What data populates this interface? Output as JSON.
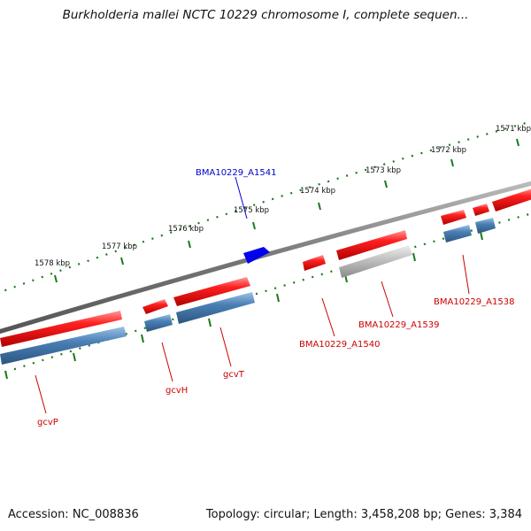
{
  "title": "Burkholderia mallei NCTC 10229 chromosome I, complete sequen...",
  "footer": {
    "accession": "Accession: NC_008836",
    "stats": "Topology: circular; Length: 3,458,208 bp; Genes: 3,384"
  },
  "ruler_labels": [
    "1571 kbp",
    "1572 kbp",
    "1573 kbp",
    "1574 kbp",
    "1575 kbp",
    "1576 kbp",
    "1577 kbp",
    "1578 kbp"
  ],
  "gene_labels": {
    "a1541": "BMA10229_A1541",
    "a1540": "BMA10229_A1540",
    "a1539": "BMA10229_A1539",
    "a1538": "BMA10229_A1538",
    "gcvP": "gcvP",
    "gcvH": "gcvH",
    "gcvT": "gcvT"
  },
  "colors": {
    "forward_gene": "#ee1111",
    "reverse_cds": "#4a7fb5",
    "pseudo": "#b8b8b8",
    "highlight": "#0000ee",
    "backbone": "#777777",
    "ticks": "#1a7a1a"
  }
}
